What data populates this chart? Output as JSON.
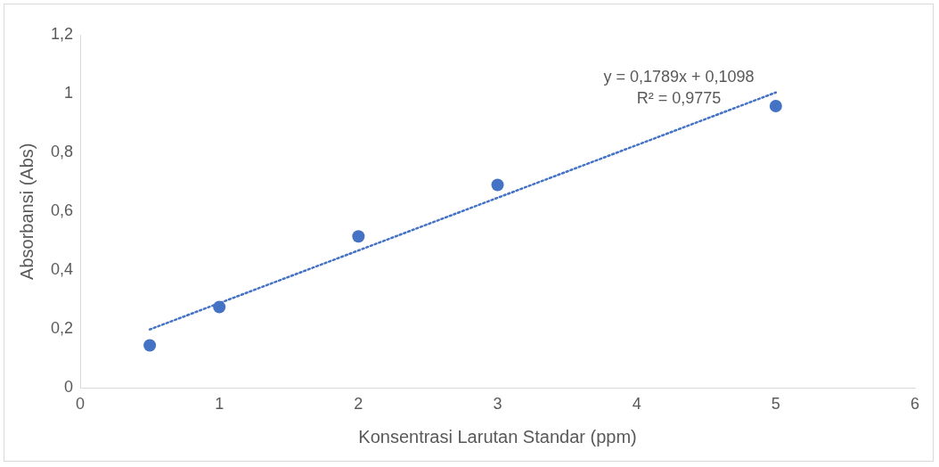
{
  "chart_data": {
    "type": "scatter",
    "xlabel": "Konsentrasi Larutan Standar (ppm)",
    "ylabel": "Absorbansi (Abs)",
    "xlim": [
      0,
      6
    ],
    "xticks": [
      0,
      1,
      2,
      3,
      4,
      5,
      6
    ],
    "ylim": [
      0,
      1.2
    ],
    "yticks": [
      0,
      {
        "value": 0.2,
        "label": "0,2"
      },
      {
        "value": 0.4,
        "label": "0,4"
      },
      {
        "value": 0.6,
        "label": "0,6"
      },
      {
        "value": 0.8,
        "label": "0,8"
      },
      1,
      {
        "value": 1.2,
        "label": "1,2"
      }
    ],
    "grid": false,
    "legend": false,
    "marker": "circle",
    "series": [
      {
        "type": "scatter",
        "color": "#4472c4",
        "x": [
          0.5,
          1,
          2,
          3,
          5
        ],
        "values": [
          0.145,
          0.275,
          0.515,
          0.69,
          0.958
        ]
      },
      {
        "type": "line",
        "color": "#4472c4",
        "line_style": "dotted",
        "marker": "none",
        "x": [
          0.5,
          5
        ],
        "values": [
          0.199,
          1.004
        ]
      }
    ],
    "annotations": [
      "y = 0,1789x + 0,1098",
      "R² = 0,9775"
    ]
  }
}
